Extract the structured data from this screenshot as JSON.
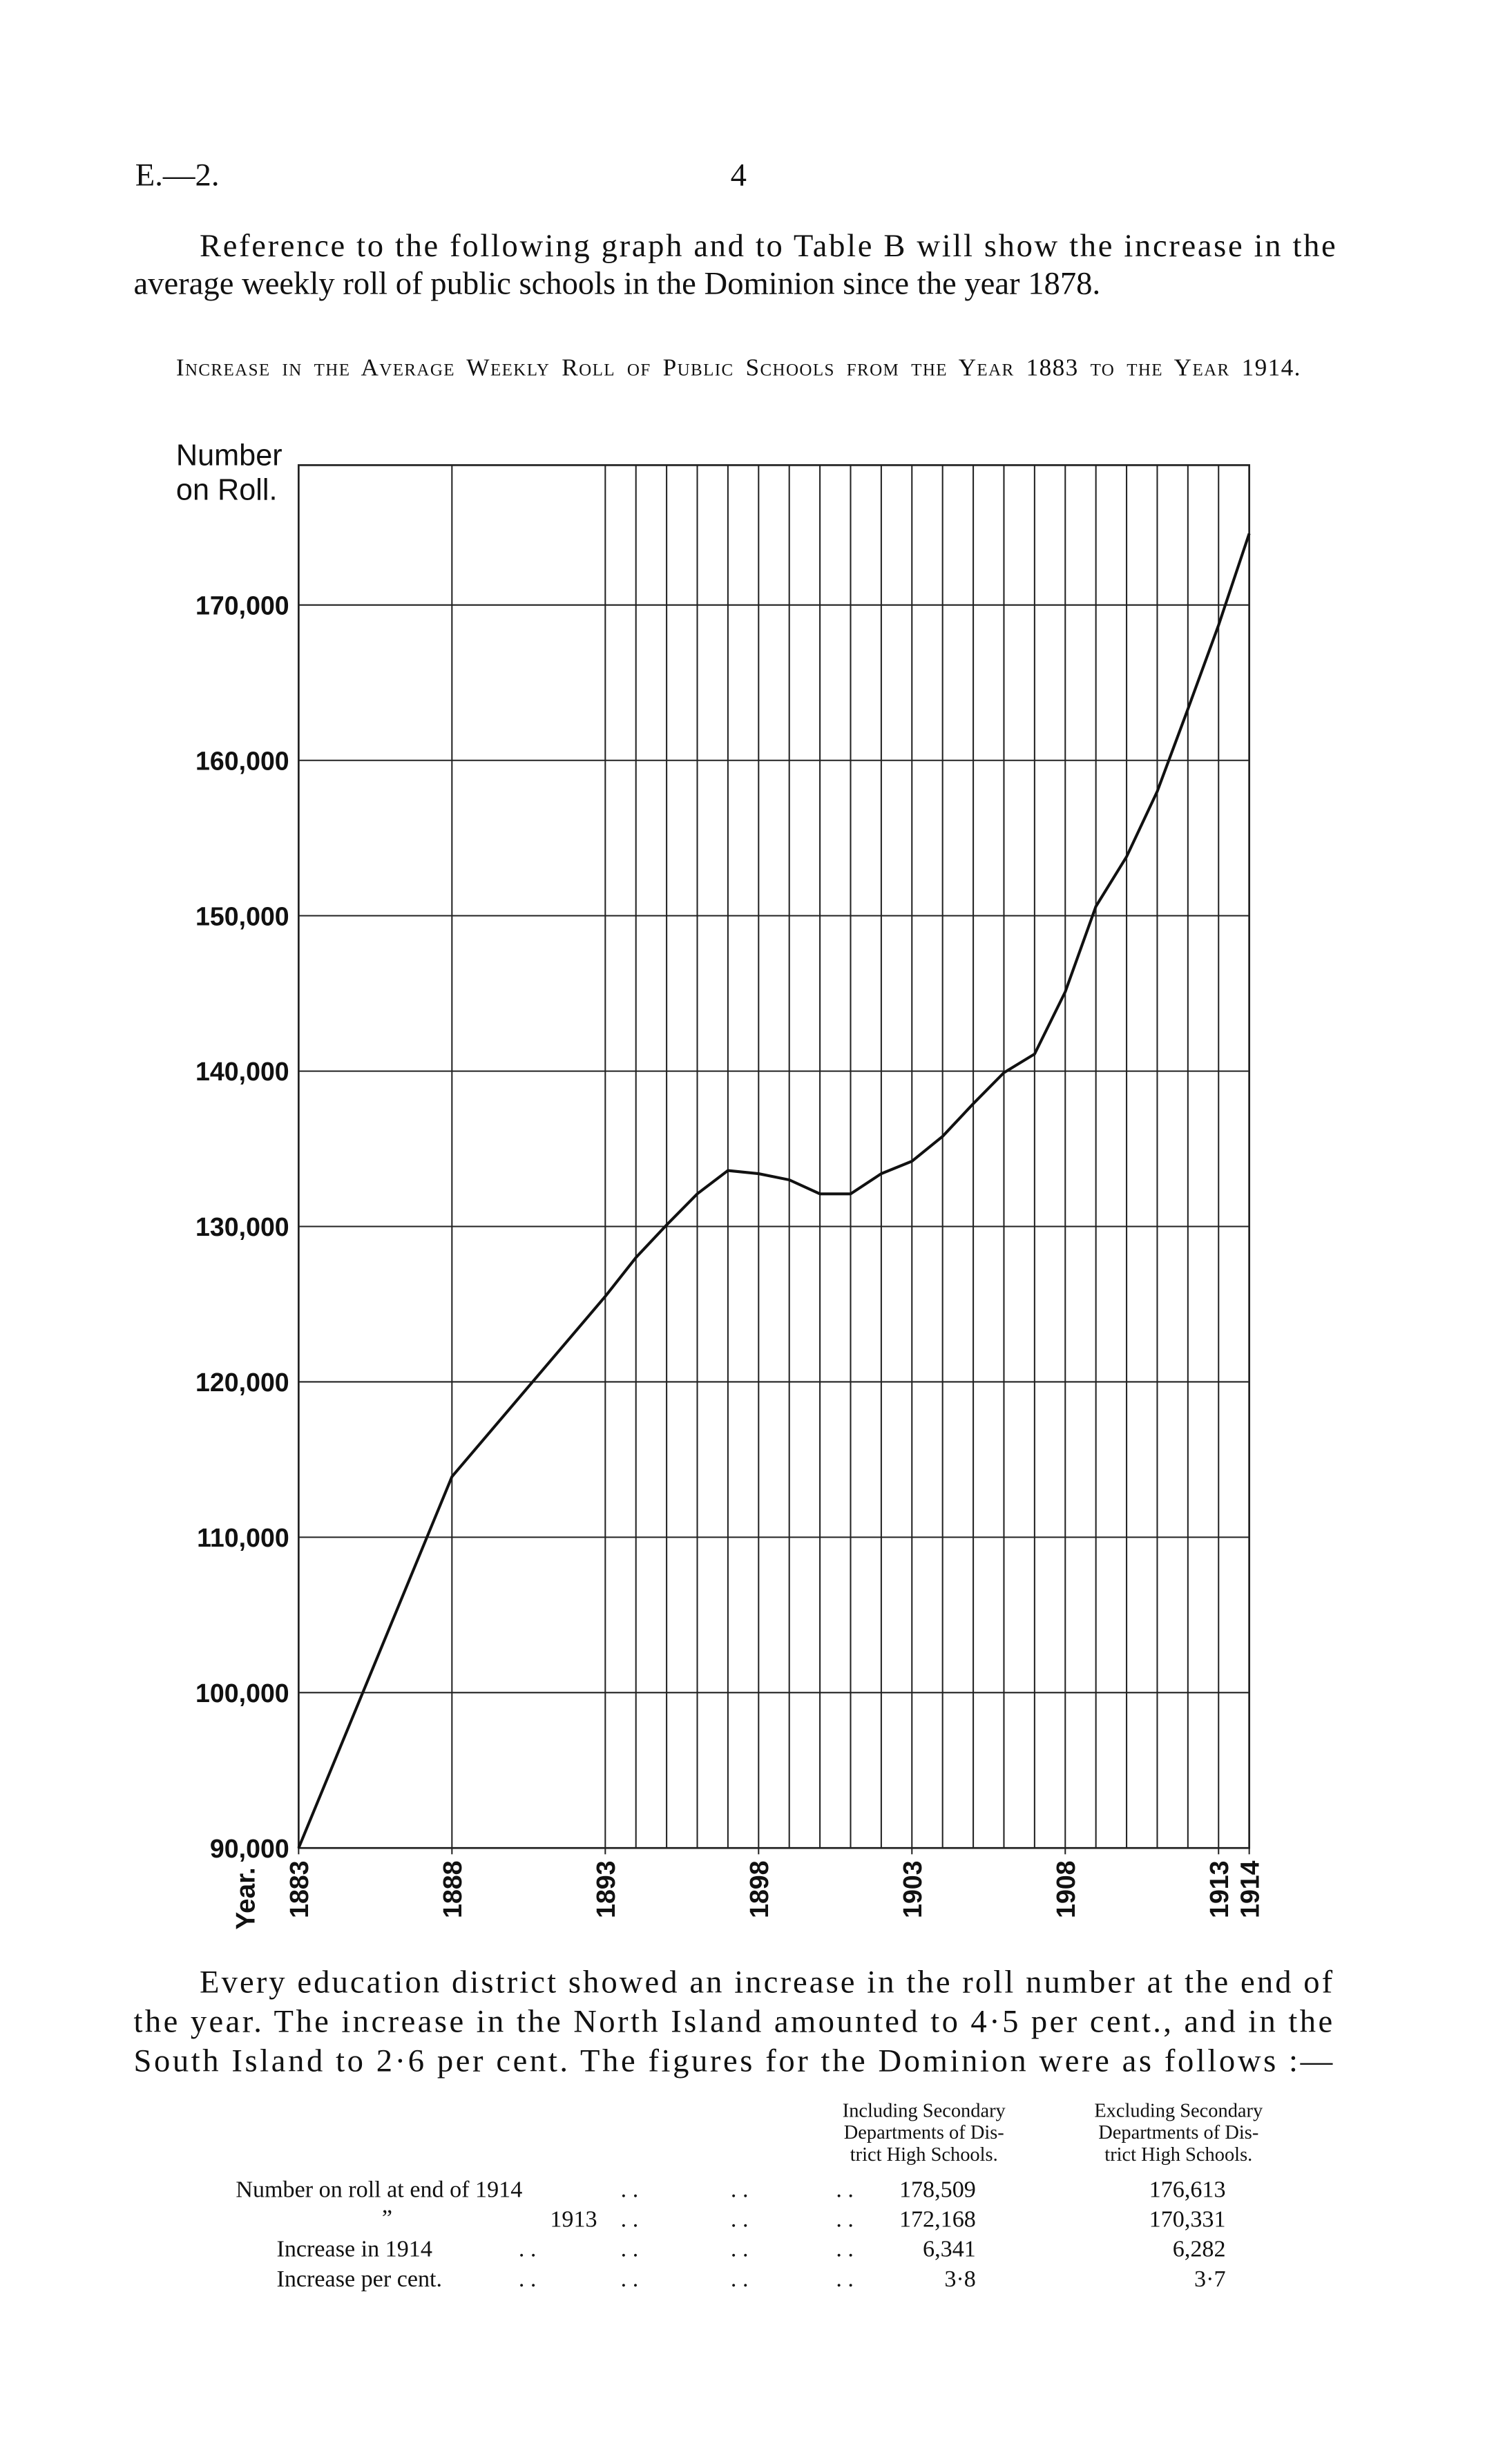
{
  "header": {
    "code": "E.—2.",
    "page": "4"
  },
  "intro": {
    "lines": [
      "Reference to the following graph and to Table B will show the increase in the",
      "average weekly roll of public schools in the Dominion since the year 1878."
    ]
  },
  "chart_data": {
    "type": "line",
    "title": "Increase in the Average Weekly Roll of Public Schools from the Year 1883 to the Year 1914.",
    "y_label": "Number on Roll.",
    "x_label": "Year.",
    "x": [
      1883,
      1888,
      1893,
      1894,
      1895,
      1896,
      1897,
      1898,
      1899,
      1900,
      1901,
      1902,
      1903,
      1904,
      1905,
      1906,
      1907,
      1908,
      1909,
      1910,
      1911,
      1912,
      1913,
      1914
    ],
    "values": [
      90000,
      113900,
      125500,
      128000,
      130100,
      132100,
      133600,
      133400,
      133000,
      132100,
      132100,
      133400,
      134200,
      135800,
      137900,
      139900,
      141100,
      145100,
      150600,
      153800,
      158000,
      163300,
      168700,
      174600
    ],
    "color": "#111111",
    "xlim": [
      1883,
      1914
    ],
    "xticks": [
      1883,
      1888,
      1893,
      1898,
      1903,
      1908,
      1913,
      1914
    ],
    "ylim": [
      90000,
      179000
    ],
    "yticks": [
      {
        "value": 90000,
        "label": "90,000"
      },
      {
        "value": 100000,
        "label": "100,000"
      },
      {
        "value": 110000,
        "label": "110,000"
      },
      {
        "value": 120000,
        "label": "120,000"
      },
      {
        "value": 130000,
        "label": "130,000"
      },
      {
        "value": 140000,
        "label": "140,000"
      },
      {
        "value": 150000,
        "label": "150,000"
      },
      {
        "value": 160000,
        "label": "160,000"
      },
      {
        "value": 170000,
        "label": "170,000"
      }
    ],
    "grid": true
  },
  "summary": {
    "lines": [
      "Every education district showed an increase in the roll number at the end of",
      "the year.  The increase in the North Island amounted to 4·5 per cent., and in the",
      "South Island to 2·6 per cent.  The figures for the Dominion were as follows :—"
    ]
  },
  "table": {
    "columns": [
      [
        "Including Secondary",
        "Departments of Dis-",
        "trict High Schools."
      ],
      [
        "Excluding Secondary",
        "Departments of Dis-",
        "trict High Schools."
      ]
    ],
    "ditto": "„",
    "rows": [
      [
        "Number on roll at end of 1914",
        "178,509",
        "176,613"
      ],
      [
        "1913",
        "172,168",
        "170,331"
      ],
      [
        "Increase in 1914",
        "6,341",
        "6,282"
      ],
      [
        "Increase per cent.",
        "3·8",
        "3·7"
      ]
    ]
  }
}
